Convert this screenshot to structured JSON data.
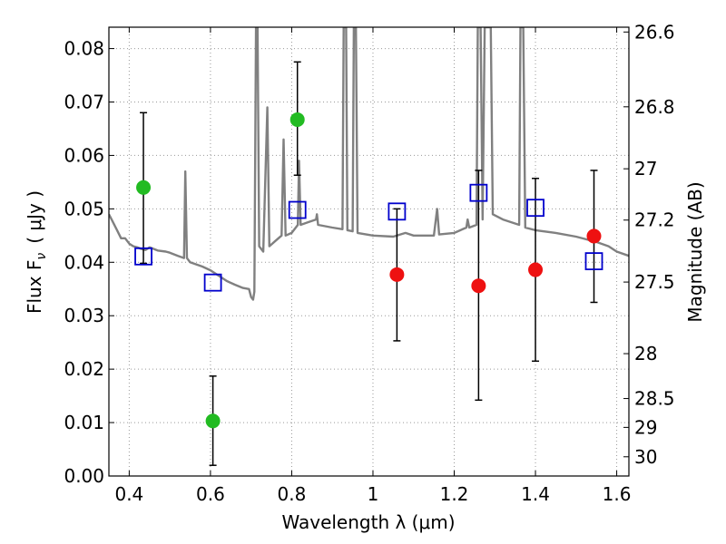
{
  "chart_data": {
    "type": "scatter",
    "xlabel": "Wavelength  λ (μm)",
    "ylabel_left": "Flux  F",
    "ylabel_left_sub": "ν",
    "ylabel_left_unit": "( μJy )",
    "ylabel_right": "Magnitude (AB)",
    "xlim": [
      0.35,
      1.63
    ],
    "ylim": [
      0.0,
      0.084
    ],
    "grid": true,
    "x_ticks": [
      {
        "v": 0.4,
        "label": "0.4"
      },
      {
        "v": 0.6,
        "label": "0.6"
      },
      {
        "v": 0.8,
        "label": "0.8"
      },
      {
        "v": 1.0,
        "label": "1"
      },
      {
        "v": 1.2,
        "label": "1.2"
      },
      {
        "v": 1.4,
        "label": "1.4"
      },
      {
        "v": 1.6,
        "label": "1.6"
      }
    ],
    "y_ticks": [
      {
        "v": 0.0,
        "label": "0.00"
      },
      {
        "v": 0.01,
        "label": "0.01"
      },
      {
        "v": 0.02,
        "label": "0.02"
      },
      {
        "v": 0.03,
        "label": "0.03"
      },
      {
        "v": 0.04,
        "label": "0.04"
      },
      {
        "v": 0.05,
        "label": "0.05"
      },
      {
        "v": 0.06,
        "label": "0.06"
      },
      {
        "v": 0.07,
        "label": "0.07"
      },
      {
        "v": 0.08,
        "label": "0.08"
      }
    ],
    "right_ticks": [
      {
        "flux": 0.0831,
        "label": "26.6"
      },
      {
        "flux": 0.0691,
        "label": "26.8"
      },
      {
        "flux": 0.0575,
        "label": "27"
      },
      {
        "flux": 0.0479,
        "label": "27.2"
      },
      {
        "flux": 0.0363,
        "label": "27.5"
      },
      {
        "flux": 0.0229,
        "label": "28"
      },
      {
        "flux": 0.0145,
        "label": "28.5"
      },
      {
        "flux": 0.0091,
        "label": "29"
      },
      {
        "flux": 0.0036,
        "label": "30"
      }
    ],
    "colors": {
      "template": "#808080",
      "green": "#22bb22",
      "red": "#ee1111",
      "blue": "#0000cc",
      "grid": "#999999"
    },
    "model_photometry": [
      {
        "x": 0.435,
        "y": 0.0411
      },
      {
        "x": 0.606,
        "y": 0.0362
      },
      {
        "x": 0.814,
        "y": 0.0498
      },
      {
        "x": 1.059,
        "y": 0.0495
      },
      {
        "x": 1.26,
        "y": 0.053
      },
      {
        "x": 1.4,
        "y": 0.0502
      },
      {
        "x": 1.544,
        "y": 0.0402
      }
    ],
    "observed_optical": [
      {
        "x": 0.435,
        "y": 0.054,
        "err_low": 0.0398,
        "err_high": 0.068
      },
      {
        "x": 0.606,
        "y": 0.0103,
        "err_low": 0.002,
        "err_high": 0.0187
      },
      {
        "x": 0.814,
        "y": 0.0667,
        "err_low": 0.0563,
        "err_high": 0.0775
      }
    ],
    "observed_nir": [
      {
        "x": 1.059,
        "y": 0.0377,
        "err_low": 0.0253,
        "err_high": 0.05
      },
      {
        "x": 1.26,
        "y": 0.0356,
        "err_low": 0.0142,
        "err_high": 0.0572
      },
      {
        "x": 1.4,
        "y": 0.0386,
        "err_low": 0.0215,
        "err_high": 0.0557
      },
      {
        "x": 1.544,
        "y": 0.0449,
        "err_low": 0.0325,
        "err_high": 0.0572
      }
    ],
    "template_spectrum": [
      [
        0.35,
        0.049
      ],
      [
        0.36,
        0.0475
      ],
      [
        0.37,
        0.046
      ],
      [
        0.38,
        0.0445
      ],
      [
        0.39,
        0.0445
      ],
      [
        0.4,
        0.0435
      ],
      [
        0.41,
        0.043
      ],
      [
        0.42,
        0.0428
      ],
      [
        0.43,
        0.0425
      ],
      [
        0.44,
        0.0423
      ],
      [
        0.45,
        0.0428
      ],
      [
        0.47,
        0.0422
      ],
      [
        0.49,
        0.042
      ],
      [
        0.5,
        0.0418
      ],
      [
        0.52,
        0.0412
      ],
      [
        0.535,
        0.0408
      ],
      [
        0.538,
        0.057
      ],
      [
        0.542,
        0.0408
      ],
      [
        0.55,
        0.04
      ],
      [
        0.58,
        0.0392
      ],
      [
        0.6,
        0.0385
      ],
      [
        0.62,
        0.0375
      ],
      [
        0.64,
        0.0365
      ],
      [
        0.66,
        0.0358
      ],
      [
        0.68,
        0.0352
      ],
      [
        0.695,
        0.035
      ],
      [
        0.7,
        0.0335
      ],
      [
        0.705,
        0.033
      ],
      [
        0.708,
        0.0345
      ],
      [
        0.712,
        0.084
      ],
      [
        0.716,
        0.084
      ],
      [
        0.72,
        0.043
      ],
      [
        0.73,
        0.042
      ],
      [
        0.74,
        0.069
      ],
      [
        0.745,
        0.043
      ],
      [
        0.76,
        0.044
      ],
      [
        0.775,
        0.045
      ],
      [
        0.78,
        0.063
      ],
      [
        0.785,
        0.045
      ],
      [
        0.8,
        0.0455
      ],
      [
        0.815,
        0.047
      ],
      [
        0.818,
        0.059
      ],
      [
        0.822,
        0.047
      ],
      [
        0.84,
        0.0475
      ],
      [
        0.86,
        0.048
      ],
      [
        0.862,
        0.049
      ],
      [
        0.865,
        0.047
      ],
      [
        0.9,
        0.0465
      ],
      [
        0.925,
        0.0462
      ],
      [
        0.928,
        0.084
      ],
      [
        0.934,
        0.084
      ],
      [
        0.937,
        0.046
      ],
      [
        0.95,
        0.0458
      ],
      [
        0.953,
        0.084
      ],
      [
        0.958,
        0.084
      ],
      [
        0.962,
        0.0455
      ],
      [
        1.0,
        0.045
      ],
      [
        1.05,
        0.0448
      ],
      [
        1.08,
        0.0455
      ],
      [
        1.1,
        0.045
      ],
      [
        1.15,
        0.045
      ],
      [
        1.158,
        0.05
      ],
      [
        1.163,
        0.0452
      ],
      [
        1.2,
        0.0455
      ],
      [
        1.23,
        0.0465
      ],
      [
        1.233,
        0.048
      ],
      [
        1.237,
        0.0465
      ],
      [
        1.255,
        0.047
      ],
      [
        1.258,
        0.084
      ],
      [
        1.265,
        0.084
      ],
      [
        1.27,
        0.048
      ],
      [
        1.275,
        0.084
      ],
      [
        1.29,
        0.084
      ],
      [
        1.295,
        0.049
      ],
      [
        1.32,
        0.048
      ],
      [
        1.36,
        0.047
      ],
      [
        1.363,
        0.084
      ],
      [
        1.37,
        0.084
      ],
      [
        1.375,
        0.0465
      ],
      [
        1.4,
        0.046
      ],
      [
        1.45,
        0.0455
      ],
      [
        1.5,
        0.0448
      ],
      [
        1.55,
        0.0438
      ],
      [
        1.58,
        0.043
      ],
      [
        1.6,
        0.042
      ],
      [
        1.63,
        0.0412
      ]
    ]
  }
}
